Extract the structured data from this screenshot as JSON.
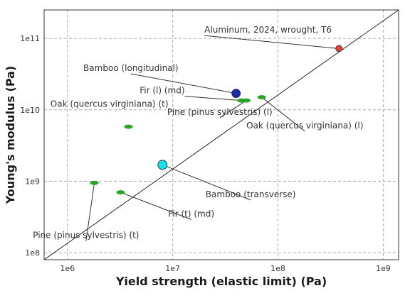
{
  "chart_data": {
    "type": "scatter",
    "title": "",
    "xlabel": "Yield strength (elastic limit) (Pa)",
    "ylabel": "Young's modulus (Pa)",
    "xscale": "log",
    "yscale": "log",
    "xlim": [
      600000,
      1400000000
    ],
    "ylim": [
      80000000,
      250000000000
    ],
    "grid": true,
    "legend": "none",
    "x_ticks": [
      {
        "value": 1000000,
        "label": "1e6"
      },
      {
        "value": 10000000,
        "label": "1e7"
      },
      {
        "value": 100000000,
        "label": "1e8"
      },
      {
        "value": 1000000000,
        "label": "1e9"
      }
    ],
    "y_ticks": [
      {
        "value": 100000000,
        "label": "1e8"
      },
      {
        "value": 1000000000,
        "label": "1e9"
      },
      {
        "value": 10000000000,
        "label": "1e10"
      },
      {
        "value": 100000000000,
        "label": "1e11"
      }
    ],
    "guide_line": {
      "from": [
        600000,
        80000000
      ],
      "to": [
        1400000000,
        250000000000
      ]
    },
    "points": [
      {
        "name": "Aluminum, 2024, wrought, T6",
        "shape": "circle",
        "color": "#e8432e",
        "x": 380000000,
        "y": 72000000000,
        "size": 4.5,
        "label_x": 20000000,
        "label_y": 120000000000,
        "anchor": "start",
        "leader": true
      },
      {
        "name": "Bamboo (longitudinal)",
        "shape": "circle",
        "color": "#1a2ea8",
        "x": 40000000,
        "y": 17000000000,
        "size": 6,
        "label_x": 4000000,
        "label_y": 35000000000,
        "anchor": "middle",
        "leader": true
      },
      {
        "name": "Fir (l) (md)",
        "shape": "ellipse",
        "color": "#2aa52a",
        "x": 45000000,
        "y": 13500000000,
        "size": 5,
        "label_x": 13000000,
        "label_y": 17000000000,
        "anchor": "end",
        "leader": true
      },
      {
        "name": "Pine (pinus sylvestris) (l)",
        "shape": "ellipse",
        "color": "#2aa52a",
        "x": 50000000,
        "y": 13500000000,
        "size": 5,
        "label_x": 28000000,
        "label_y": 8500000000,
        "anchor": "middle",
        "leader": true
      },
      {
        "name": "Oak (quercus virginiana) (l)",
        "shape": "ellipse",
        "color": "#2aa52a",
        "x": 70000000,
        "y": 15000000000,
        "size": 5,
        "label_x": 180000000,
        "label_y": 5500000000,
        "anchor": "middle",
        "leader": true
      },
      {
        "name": "Oak (quercus virginiana) (t)",
        "shape": "ellipse",
        "color": "#2aa52a",
        "x": 3800000,
        "y": 5800000000,
        "size": 5,
        "label_x": 2500000,
        "label_y": 11000000000,
        "anchor": "middle",
        "leader": false
      },
      {
        "name": "Bamboo (transverse)",
        "shape": "circle",
        "color": "#19e0e8",
        "x": 8000000,
        "y": 1700000000,
        "size": 6.5,
        "label_x": 55000000,
        "label_y": 600000000,
        "anchor": "middle",
        "leader": true
      },
      {
        "name": "Pine (pinus sylvestris) (t)",
        "shape": "ellipse",
        "color": "#2aa52a",
        "x": 1800000,
        "y": 950000000,
        "size": 5,
        "label_x": 1500000,
        "label_y": 160000000,
        "anchor": "middle",
        "leader": true
      },
      {
        "name": "Fir (t) (md)",
        "shape": "ellipse",
        "color": "#2aa52a",
        "x": 3200000,
        "y": 700000000,
        "size": 5,
        "label_x": 15000000,
        "label_y": 320000000,
        "anchor": "middle",
        "leader": true
      }
    ],
    "colors": {
      "grid": "#aaaaaa",
      "frame": "#333333",
      "leader": "#333333",
      "guide": "#111111"
    }
  }
}
